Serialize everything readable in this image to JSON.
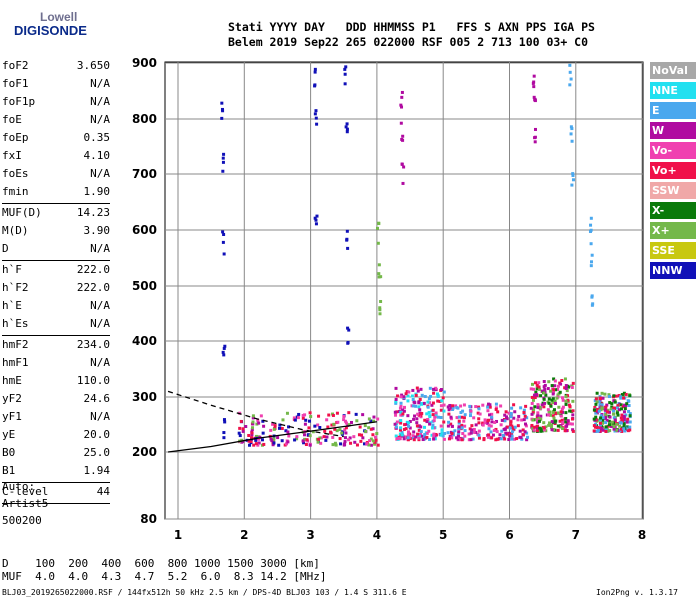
{
  "logo": {
    "line1": "Lowell",
    "line2": "DIGISONDE"
  },
  "header": {
    "line1": "Stati YYYY DAY   DDD HHMMSS P1   FFS S AXN PPS IGA PS",
    "line2": "Belem 2019 Sep22 265 022000 RSF 005 2 713 100 03+ C0"
  },
  "params": [
    {
      "name": "foF2",
      "value": "3.650"
    },
    {
      "name": "foF1",
      "value": "N/A"
    },
    {
      "name": "foF1p",
      "value": "N/A"
    },
    {
      "name": "foE",
      "value": "N/A"
    },
    {
      "name": "foEp",
      "value": "0.35"
    },
    {
      "name": "fxI",
      "value": "4.10"
    },
    {
      "name": "foEs",
      "value": "N/A"
    },
    {
      "name": "fmin",
      "value": "1.90",
      "sep": true
    },
    {
      "name": "MUF(D)",
      "value": "14.23"
    },
    {
      "name": "M(D)",
      "value": "3.90"
    },
    {
      "name": "D",
      "value": "N/A",
      "sep": true
    },
    {
      "name": "h`F",
      "value": "222.0"
    },
    {
      "name": "h`F2",
      "value": "222.0"
    },
    {
      "name": "h`E",
      "value": "N/A"
    },
    {
      "name": "h`Es",
      "value": "N/A",
      "sep": true
    },
    {
      "name": "hmF2",
      "value": "234.0"
    },
    {
      "name": "hmF1",
      "value": "N/A"
    },
    {
      "name": "hmE",
      "value": "110.0"
    },
    {
      "name": "yF2",
      "value": "24.6"
    },
    {
      "name": "yF1",
      "value": "N/A"
    },
    {
      "name": "yE",
      "value": "20.0"
    },
    {
      "name": "B0",
      "value": "25.0"
    },
    {
      "name": "B1",
      "value": "1.94",
      "sep": true
    },
    {
      "name": "C-level",
      "value": "44",
      "sep": true
    }
  ],
  "auto": {
    "l1": "Auto:",
    "l2": "Artist5",
    "l3": "500200"
  },
  "dtable": {
    "row1": "D    100  200  400  600  800 1000 1500 3000 [km]",
    "row2": "MUF  4.0  4.0  4.3  4.7  5.2  6.0  8.3 14.2 [MHz]"
  },
  "footer": "BLJ03_2019265022000.RSF / 144fx512h 50 kHz 2.5 km / DPS-4D BLJ03 103 / 1.4 S 311.6 E",
  "version": "Ion2Png v. 1.3.17",
  "legend": [
    {
      "label": "NoVal",
      "color": "#a8a8a8"
    },
    {
      "label": "NNE",
      "color": "#22e0f0"
    },
    {
      "label": "E",
      "color": "#4aa8ee"
    },
    {
      "label": "W",
      "color": "#b00aa0"
    },
    {
      "label": "Vo-",
      "color": "#f040b0"
    },
    {
      "label": "Vo+",
      "color": "#f0104a"
    },
    {
      "label": "SSW",
      "color": "#f0a8a8"
    },
    {
      "label": "X-",
      "color": "#0a7a0a"
    },
    {
      "label": "X+",
      "color": "#74b84a"
    },
    {
      "label": "SSE",
      "color": "#c8c810"
    },
    {
      "label": "NNW",
      "color": "#1010b8"
    }
  ],
  "chart_data": {
    "type": "scatter",
    "x_ticks": [
      "1",
      "2",
      "3",
      "4",
      "5",
      "6",
      "7",
      "8"
    ],
    "y_ticks": [
      "80",
      "200",
      "300",
      "400",
      "500",
      "600",
      "700",
      "800",
      "900"
    ],
    "xlim": [
      0.85,
      8.0
    ],
    "ylim": [
      80,
      900
    ],
    "grid": true,
    "legend_placement": "right",
    "traces": [
      {
        "x": [
          1.65,
          1.66,
          1.66,
          1.67,
          1.68
        ],
        "y": [
          820,
          720,
          580,
          380,
          250
        ],
        "color": "#1010b8"
      },
      {
        "x": [
          3.05,
          3.06,
          3.06
        ],
        "y": [
          880,
          800,
          620
        ],
        "color": "#1010b8"
      },
      {
        "x": [
          3.5,
          3.52,
          3.53,
          3.55
        ],
        "y": [
          880,
          800,
          580,
          420
        ],
        "color": "#1010b8"
      },
      {
        "x": [
          4.35,
          4.36,
          4.37
        ],
        "y": [
          840,
          780,
          700
        ],
        "color": "#b00aa0"
      },
      {
        "x": [
          6.35,
          6.36,
          6.37
        ],
        "y": [
          860,
          820,
          780
        ],
        "color": "#b00aa0"
      },
      {
        "x": [
          6.9,
          6.92,
          6.93
        ],
        "y": [
          880,
          780,
          700
        ],
        "color": "#4aa8ee"
      },
      {
        "x": [
          7.2,
          7.21,
          7.22
        ],
        "y": [
          620,
          560,
          480
        ],
        "color": "#4aa8ee"
      },
      {
        "x": [
          4.0,
          4.02,
          4.03
        ],
        "y": [
          600,
          520,
          470
        ],
        "color": "#74b84a"
      }
    ],
    "clusters": [
      {
        "x": [
          1.9,
          4.0
        ],
        "y": [
          215,
          275
        ],
        "colors": [
          "#f0104a",
          "#b00aa0",
          "#1010b8",
          "#f040b0",
          "#74b84a"
        ]
      },
      {
        "x": [
          4.25,
          5.0
        ],
        "y": [
          225,
          320
        ],
        "colors": [
          "#f0104a",
          "#b00aa0",
          "#4aa8ee",
          "#22e0f0",
          "#f040b0"
        ]
      },
      {
        "x": [
          5.05,
          6.25
        ],
        "y": [
          225,
          290
        ],
        "colors": [
          "#f0104a",
          "#b00aa0",
          "#4aa8ee",
          "#f040b0"
        ]
      },
      {
        "x": [
          6.3,
          6.95
        ],
        "y": [
          240,
          335
        ],
        "colors": [
          "#f0104a",
          "#b00aa0",
          "#0a7a0a",
          "#74b84a",
          "#f040b0"
        ]
      },
      {
        "x": [
          7.25,
          7.8
        ],
        "y": [
          240,
          310
        ],
        "colors": [
          "#b00aa0",
          "#74b84a",
          "#0a7a0a",
          "#f0104a",
          "#4aa8ee"
        ]
      }
    ],
    "o_trace": {
      "x": [
        0.85,
        1.5,
        2.2,
        3.0,
        3.6,
        4.0
      ],
      "y": [
        200,
        210,
        225,
        238,
        248,
        255
      ]
    },
    "x_trace": {
      "x": [
        0.85,
        1.5,
        2.2,
        2.9,
        3.5
      ],
      "y": [
        310,
        285,
        260,
        240,
        228
      ]
    }
  }
}
